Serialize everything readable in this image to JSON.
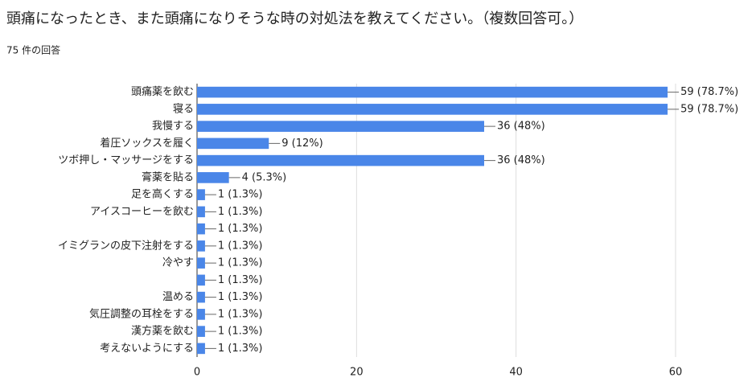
{
  "chart_data": {
    "type": "hbar",
    "title": "頭痛になったとき、また頭痛になりそうな時の対処法を教えてください。（複数回答可。）",
    "subtitle": "75 件の回答",
    "categories": [
      "頭痛薬を飲む",
      "寝る",
      "我慢する",
      "着圧ソックスを履く",
      "ツボ押し・マッサージをする",
      "膏薬を貼る",
      "足を高くする",
      "アイスコーヒーを飲む",
      null,
      "イミグランの皮下注射をする",
      "冷やす",
      null,
      "温める",
      "気圧調整の耳栓をする",
      "漢方薬を飲む",
      "考えないようにする"
    ],
    "values": [
      59,
      59,
      36,
      9,
      36,
      4,
      1,
      1,
      1,
      1,
      1,
      1,
      1,
      1,
      1,
      1
    ],
    "value_labels": [
      "59 (78.7%)",
      "59 (78.7%)",
      "36 (48%)",
      "9 (12%)",
      "36 (48%)",
      "4 (5.3%)",
      "1 (1.3%)",
      "1 (1.3%)",
      "1 (1.3%)",
      "1 (1.3%)",
      "1 (1.3%)",
      "1 (1.3%)",
      "1 (1.3%)",
      "1 (1.3%)",
      "1 (1.3%)",
      "1 (1.3%)"
    ],
    "color": "#4a86e8",
    "xlim": [
      0,
      60
    ],
    "xticks": [
      0,
      20,
      40,
      60
    ],
    "grid": true
  }
}
